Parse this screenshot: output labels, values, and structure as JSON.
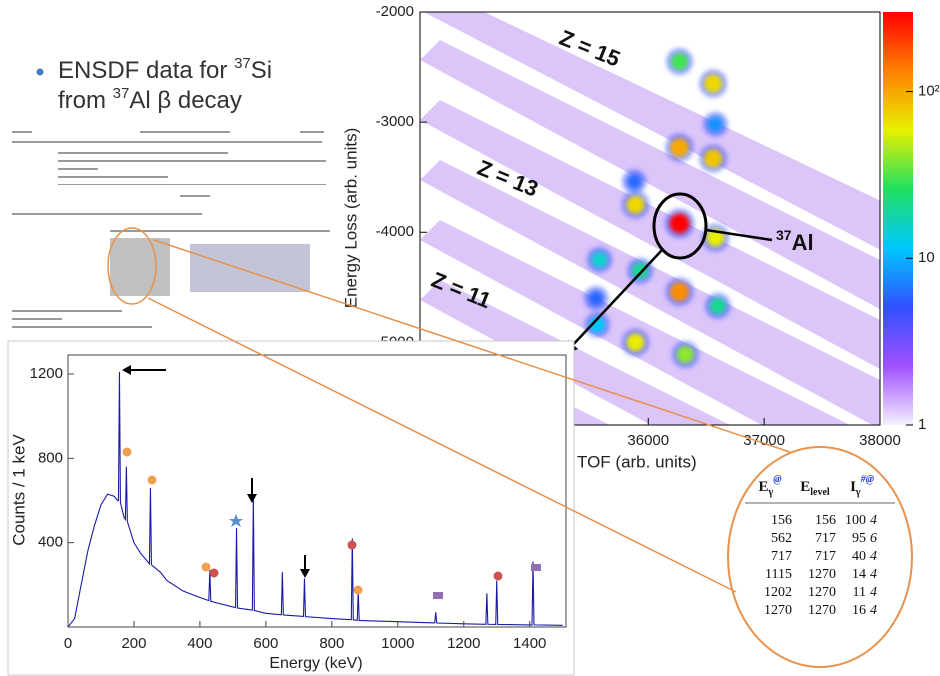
{
  "slide": {
    "bullet_line1": [
      "ENSDF data for ",
      "37",
      "Si"
    ],
    "bullet_line2": [
      "from ",
      "37",
      "Al β decay"
    ]
  },
  "table": {
    "headers": [
      {
        "main": "E",
        "sub": "γ",
        "sup": "@"
      },
      {
        "main": "E",
        "sub": "level"
      },
      {
        "main": "I",
        "sub": "γ",
        "sup": "#@"
      }
    ],
    "rows": [
      [
        156,
        156,
        100,
        4
      ],
      [
        562,
        717,
        95,
        6
      ],
      [
        717,
        717,
        40,
        4
      ],
      [
        1115,
        1270,
        14,
        4
      ],
      [
        1202,
        1270,
        11,
        4
      ],
      [
        1270,
        1270,
        16,
        4
      ]
    ]
  },
  "chart_data": [
    {
      "type": "scatter",
      "xlabel": "TOF (arb. units)",
      "ylabel": "Energy Loss (arb. units)",
      "xlim": [
        34030,
        38000
      ],
      "ylim": [
        -5750,
        -2000
      ],
      "xticks": [
        36000,
        37000,
        38000
      ],
      "yticks": [
        -2000,
        -3000,
        -4000,
        -5000
      ],
      "x": [
        36270,
        36560,
        36270,
        36560,
        35890,
        36270,
        36580,
        35580,
        35930,
        36270,
        36600,
        35560,
        35890,
        36320,
        36580,
        35880,
        35550
      ],
      "y": [
        -2450,
        -2650,
        -3230,
        -3330,
        -3750,
        -3920,
        -4050,
        -4250,
        -4350,
        -4540,
        -4670,
        -4840,
        -5000,
        -5110,
        -3020,
        -3540,
        -4600
      ],
      "z": [
        30,
        70,
        100,
        80,
        70,
        300,
        60,
        15,
        20,
        120,
        20,
        12,
        60,
        40,
        8,
        6,
        6
      ],
      "zlim": [
        1,
        300
      ],
      "zticks": [
        1,
        10,
        {
          "value": 100,
          "label": "10²"
        }
      ],
      "z_log_scale": true,
      "colormap": [
        "#f4f0ff",
        "#a050ff",
        "#3050ff",
        "#00c8ff",
        "#20e060",
        "#e8f000",
        "#ff8000",
        "#ff0000"
      ],
      "annotations": [
        "Z = 15",
        "Z = 13",
        "Z = 11"
      ],
      "highlight": {
        "mass": "37",
        "symbol": "Al"
      }
    },
    {
      "type": "line",
      "xlabel": "Energy (keV)",
      "ylabel": "Counts / 1 keV",
      "xlim": [
        0,
        1510
      ],
      "ylim": [
        0,
        1290
      ],
      "xticks": [
        0,
        200,
        400,
        600,
        800,
        1000,
        1200,
        1400
      ],
      "yticks": [
        400,
        800,
        1200
      ],
      "x": [
        0,
        20,
        40,
        60,
        80,
        100,
        120,
        140,
        150,
        153,
        156,
        159,
        170,
        174,
        177,
        180,
        190,
        200,
        220,
        247,
        250,
        253,
        280,
        300,
        350,
        400,
        427,
        430,
        433,
        450,
        500,
        508,
        511,
        514,
        550,
        559,
        562,
        565,
        600,
        647,
        650,
        653,
        700,
        714,
        717,
        720,
        800,
        859,
        862,
        865,
        877,
        880,
        883,
        900,
        1000,
        1100,
        1112,
        1115,
        1118,
        1200,
        1267,
        1270,
        1273,
        1297,
        1300,
        1303,
        1400,
        1407,
        1410,
        1413,
        1500
      ],
      "series": [
        {
          "color": "#1a1aa8",
          "values": [
            0,
            40,
            200,
            360,
            480,
            580,
            630,
            620,
            600,
            600,
            1210,
            590,
            520,
            510,
            760,
            500,
            450,
            400,
            350,
            300,
            660,
            295,
            260,
            220,
            170,
            140,
            125,
            270,
            122,
            115,
            95,
            92,
            470,
            90,
            82,
            80,
            620,
            78,
            65,
            58,
            260,
            57,
            52,
            50,
            230,
            49,
            40,
            35,
            420,
            34,
            32,
            170,
            31,
            30,
            25,
            20,
            20,
            70,
            19,
            15,
            13,
            160,
            13,
            12,
            220,
            12,
            10,
            10,
            310,
            10,
            8
          ]
        }
      ]
    }
  ]
}
